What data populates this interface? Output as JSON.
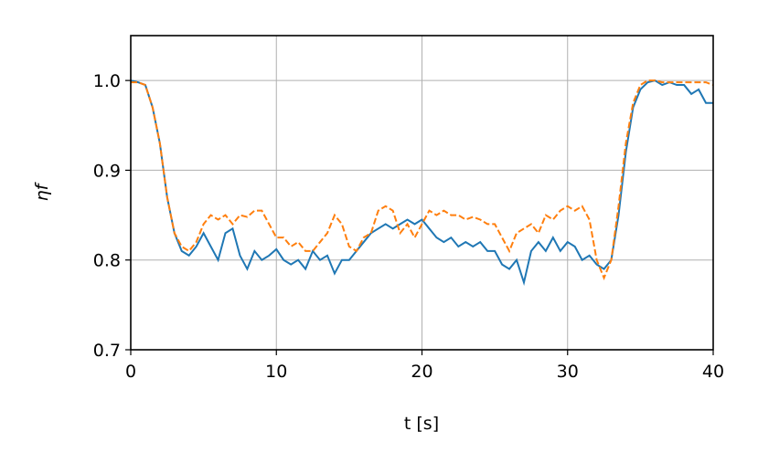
{
  "chart_data": {
    "type": "line",
    "x_label": "t [s]",
    "y_label": "ηf",
    "x": [
      0,
      0.5,
      1,
      1.5,
      2,
      2.5,
      3,
      3.5,
      4,
      4.5,
      5,
      5.5,
      6,
      6.5,
      7,
      7.5,
      8,
      8.5,
      9,
      9.5,
      10,
      10.5,
      11,
      11.5,
      12,
      12.5,
      13,
      13.5,
      14,
      14.5,
      15,
      15.5,
      16,
      16.5,
      17,
      17.5,
      18,
      18.5,
      19,
      19.5,
      20,
      20.5,
      21,
      21.5,
      22,
      22.5,
      23,
      23.5,
      24,
      24.5,
      25,
      25.5,
      26,
      26.5,
      27,
      27.5,
      28,
      28.5,
      29,
      29.5,
      30,
      30.5,
      31,
      31.5,
      32,
      32.5,
      33,
      33.5,
      34,
      34.5,
      35,
      35.5,
      36,
      36.5,
      37,
      37.5,
      38,
      38.5,
      39,
      39.5,
      40
    ],
    "series": [
      {
        "color": "#1f77b4",
        "dashed": false,
        "values": [
          1.0,
          0.998,
          0.995,
          0.97,
          0.93,
          0.87,
          0.83,
          0.81,
          0.805,
          0.815,
          0.83,
          0.815,
          0.8,
          0.83,
          0.835,
          0.805,
          0.79,
          0.81,
          0.8,
          0.805,
          0.812,
          0.8,
          0.795,
          0.8,
          0.79,
          0.81,
          0.8,
          0.805,
          0.785,
          0.8,
          0.8,
          0.81,
          0.82,
          0.83,
          0.835,
          0.84,
          0.835,
          0.84,
          0.845,
          0.84,
          0.845,
          0.835,
          0.825,
          0.82,
          0.825,
          0.815,
          0.82,
          0.815,
          0.82,
          0.81,
          0.81,
          0.795,
          0.79,
          0.8,
          0.775,
          0.81,
          0.82,
          0.81,
          0.825,
          0.81,
          0.82,
          0.815,
          0.8,
          0.805,
          0.795,
          0.79,
          0.8,
          0.85,
          0.92,
          0.97,
          0.99,
          0.998,
          1.0,
          0.995,
          0.998,
          0.995,
          0.995,
          0.985,
          0.99,
          0.975,
          0.975
        ]
      },
      {
        "color": "#ff7f0e",
        "dashed": true,
        "values": [
          0.998,
          0.998,
          0.995,
          0.97,
          0.93,
          0.87,
          0.83,
          0.815,
          0.81,
          0.82,
          0.84,
          0.85,
          0.845,
          0.85,
          0.84,
          0.85,
          0.848,
          0.855,
          0.855,
          0.84,
          0.825,
          0.825,
          0.815,
          0.82,
          0.81,
          0.81,
          0.82,
          0.83,
          0.85,
          0.84,
          0.815,
          0.81,
          0.825,
          0.83,
          0.855,
          0.86,
          0.855,
          0.83,
          0.84,
          0.825,
          0.84,
          0.855,
          0.85,
          0.855,
          0.85,
          0.85,
          0.845,
          0.848,
          0.845,
          0.84,
          0.84,
          0.825,
          0.81,
          0.83,
          0.835,
          0.84,
          0.83,
          0.85,
          0.845,
          0.855,
          0.86,
          0.855,
          0.86,
          0.845,
          0.8,
          0.78,
          0.8,
          0.86,
          0.93,
          0.975,
          0.995,
          1.0,
          1.0,
          0.998,
          0.998,
          0.998,
          0.998,
          0.998,
          0.998,
          0.998,
          0.995
        ]
      }
    ],
    "xlim": [
      0,
      40
    ],
    "xticks": [
      0,
      10,
      20,
      30,
      40
    ],
    "ylim": [
      0.7,
      1.05
    ],
    "yticks": [
      0.7,
      0.8,
      0.9,
      {
        "value": 1,
        "label": "1.0"
      }
    ],
    "grid": true
  }
}
